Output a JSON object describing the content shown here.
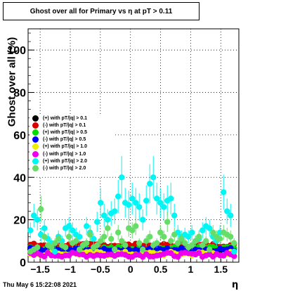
{
  "chart_data": {
    "type": "scatter",
    "title": "Ghost over all for Primary vs   η at pT > 0.11",
    "xlabel": "η",
    "ylabel": "Ghost over all (%)",
    "xlim": [
      -1.7,
      1.8
    ],
    "ylim": [
      0,
      110
    ],
    "xticks": [
      -1.5,
      -1,
      -0.5,
      0,
      0.5,
      1,
      1.5
    ],
    "xtick_labels": [
      "−1.5",
      "−1",
      "−0.5",
      "0",
      "0.5",
      "1",
      "1.5"
    ],
    "yticks": [
      0,
      20,
      40,
      60,
      80,
      100
    ],
    "ytick_labels": [
      "0",
      "20",
      "40",
      "60",
      "80",
      "100"
    ],
    "grid": true,
    "legend_position": "left-middle",
    "series": [
      {
        "name": "(+) with pT/|q| > 0.1",
        "color": "#000000",
        "level": 6,
        "spread": 0.8
      },
      {
        "name": "(-) with pT/|q| > 0.1",
        "color": "#dd0000",
        "level": 8,
        "spread": 0.8
      },
      {
        "name": "(+) with pT/|q| > 0.5",
        "color": "#00dd00",
        "level": 6.5,
        "spread": 0.9
      },
      {
        "name": "(-) with pT/|q| > 0.5",
        "color": "#0000ff",
        "level": 6,
        "spread": 0.8
      },
      {
        "name": "(+) with pT/|q| > 1.0",
        "color": "#eeee00",
        "level": 4,
        "spread": 1.0
      },
      {
        "name": "(-) with pT/|q| > 1.0",
        "color": "#ee00ee",
        "level": 3.5,
        "spread": 1.0
      },
      {
        "name": "(+) with pT/|q| > 2.0",
        "color": "#00f5f5",
        "values": [
          5,
          15,
          22,
          20,
          13,
          16,
          11,
          9,
          5,
          12,
          10,
          16,
          17,
          15,
          13,
          12,
          8,
          17,
          14,
          11,
          19,
          28,
          22,
          20,
          23,
          24,
          31,
          40,
          28,
          27,
          30,
          28,
          26,
          20,
          29,
          37,
          40,
          30,
          28,
          26,
          29,
          30,
          22,
          14,
          12,
          13,
          12,
          14,
          10,
          11,
          15,
          17,
          16,
          12,
          10,
          14,
          33,
          24,
          22,
          5
        ]
      },
      {
        "name": "(-) with pT/|q| > 2.0",
        "color": "#66dd66",
        "values": [
          4,
          5,
          6,
          7,
          25,
          12,
          8,
          7,
          9,
          11,
          8,
          7,
          12,
          9,
          10,
          6,
          8,
          9,
          13,
          7,
          8,
          10,
          12,
          16,
          11,
          6,
          14,
          10,
          8,
          16,
          15,
          17,
          9,
          6,
          10,
          12,
          8,
          9,
          14,
          12,
          19,
          10,
          13,
          9,
          11,
          9,
          7,
          8,
          10,
          12,
          8,
          10,
          6,
          14,
          12,
          11,
          14,
          13,
          12,
          9
        ]
      }
    ]
  },
  "footer": {
    "timestamp": "Thu May  6 15:22:08 2021"
  }
}
